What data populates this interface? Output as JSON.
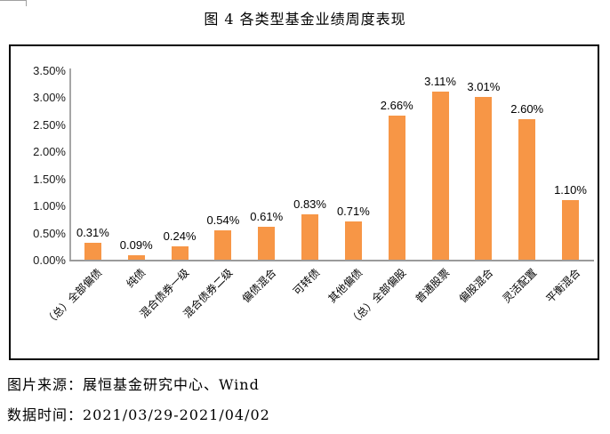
{
  "page": {
    "title": "图 4 各类型基金业绩周度表现",
    "source_line": "图片来源：展恒基金研究中心、Wind",
    "date_line": "数据时间：2021/03/29-2021/04/02"
  },
  "colors": {
    "bar": "#F79646",
    "axis": "#A6A6A6",
    "chart_border": "#000000",
    "text": "#000000"
  },
  "chart_data": {
    "type": "bar",
    "title": "图 4 各类型基金业绩周度表现",
    "categories": [
      "（总）全部偏债",
      "纯债",
      "混合债券一级",
      "混合债券二级",
      "偏债混合",
      "可转债",
      "其他偏债",
      "（总）全部偏股",
      "普通股票",
      "偏股混合",
      "灵活配置",
      "平衡混合"
    ],
    "values": [
      0.31,
      0.09,
      0.24,
      0.54,
      0.61,
      0.83,
      0.71,
      2.66,
      3.11,
      3.01,
      2.6,
      1.1
    ],
    "value_labels": [
      "0.31%",
      "0.09%",
      "0.24%",
      "0.54%",
      "0.61%",
      "0.83%",
      "0.71%",
      "2.66%",
      "3.11%",
      "3.01%",
      "2.60%",
      "1.10%"
    ],
    "xlabel": "",
    "ylabel": "",
    "ylim": [
      0,
      3.5
    ],
    "ytick_step": 0.5,
    "ytick_labels": [
      "0.00%",
      "0.50%",
      "1.00%",
      "1.50%",
      "2.00%",
      "2.50%",
      "3.00%",
      "3.50%"
    ],
    "grid": false,
    "legend": "none",
    "bar_color": "#F79646",
    "value_label_position": "above-bar",
    "xlabel_rotation_deg": -45
  }
}
